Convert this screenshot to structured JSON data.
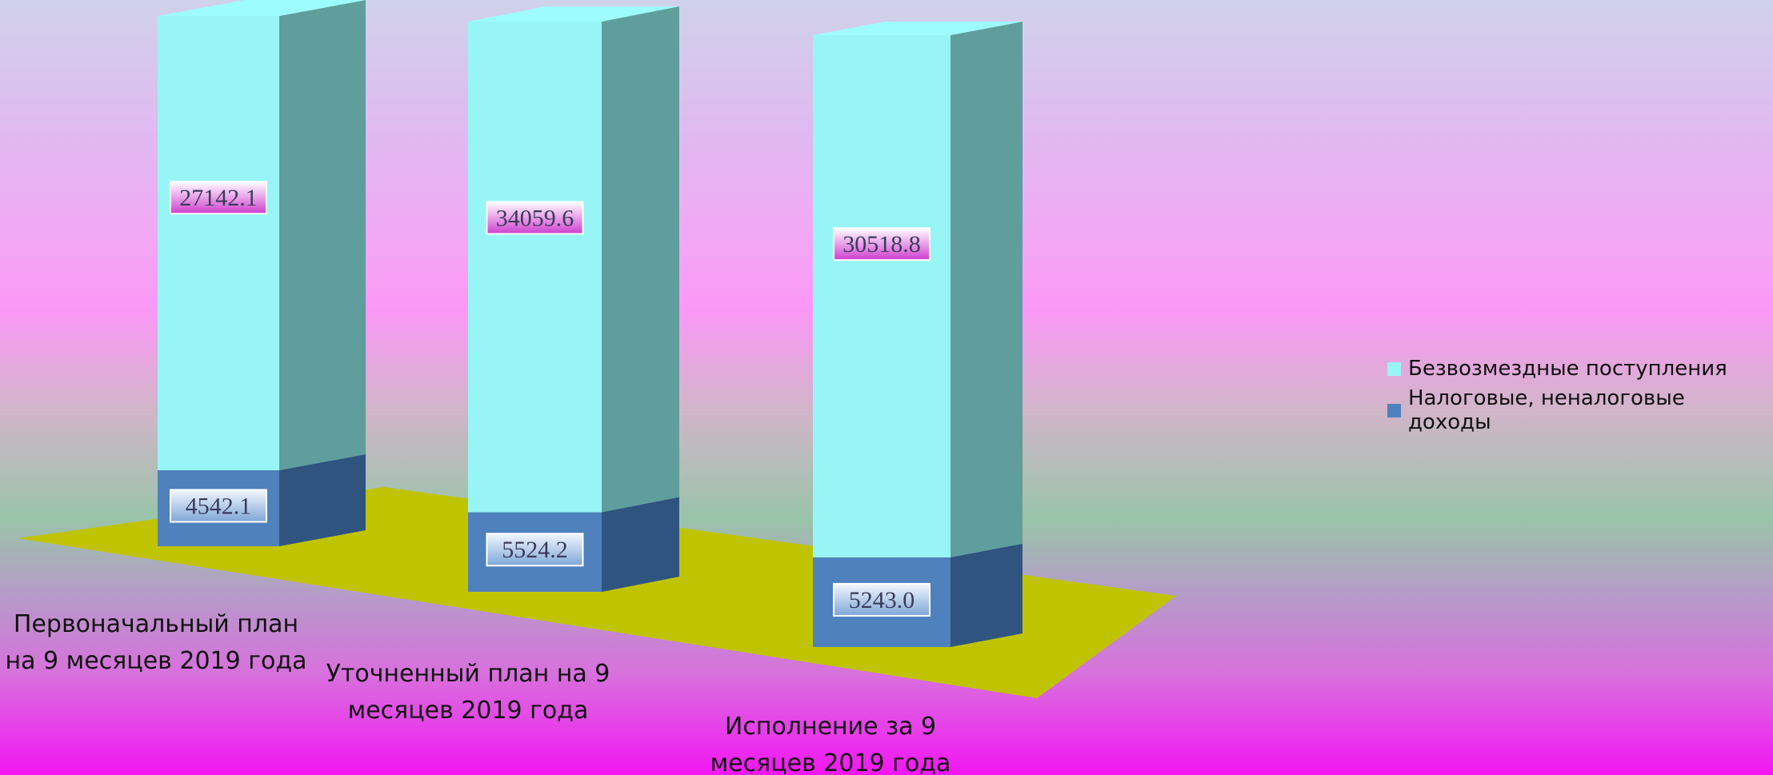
{
  "chart_data": {
    "type": "bar",
    "stacked": true,
    "three_d": true,
    "categories": [
      [
        "Первоначальный план",
        "на 9 месяцев 2019 года"
      ],
      [
        "Уточненный план на 9",
        "месяцев 2019 года"
      ],
      [
        "Исполнение за 9",
        "месяцев 2019 года"
      ]
    ],
    "series": [
      {
        "name": "Налоговые, неналоговые доходы",
        "values": [
          4542.1,
          5524.2,
          5243.0
        ],
        "labels": [
          "4542.1",
          "5524.2",
          "5243.0"
        ],
        "color_front": "#4f81bd",
        "color_side": "#2f5480"
      },
      {
        "name": "Безвозмездные поступления",
        "values": [
          27142.1,
          34059.6,
          30518.8
        ],
        "labels": [
          "27142.1",
          "34059.6",
          "30518.8"
        ],
        "color_front": "#98f5f5",
        "color_side": "#5f9e9c"
      }
    ],
    "legend": {
      "position": "right",
      "order": [
        "Безвозмездные поступления",
        "Налоговые, неналоговые доходы"
      ]
    },
    "floor_color": "#c0c400",
    "grid": false
  }
}
